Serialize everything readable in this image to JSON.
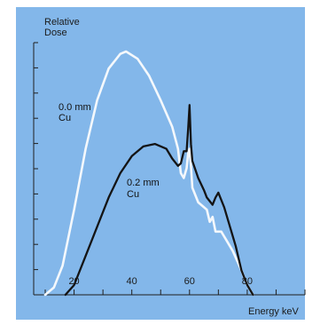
{
  "chart_data": {
    "type": "line",
    "title": "",
    "ylabel_line1": "Relative",
    "ylabel_line2": "Dose",
    "xlabel": "Energy keV",
    "xlim": [
      6,
      100
    ],
    "ylim": [
      0,
      1.0
    ],
    "x_ticks": [
      20,
      40,
      60,
      80
    ],
    "x_tick_labels": [
      "20",
      "40",
      "60",
      "80"
    ],
    "grid": false,
    "background_color": "#83b7ea",
    "series": [
      {
        "label_line1": "0.0 mm",
        "label_line2": "Cu",
        "color": "#f4f8fc",
        "points": [
          [
            10,
            0.0
          ],
          [
            13,
            0.03
          ],
          [
            16,
            0.12
          ],
          [
            20,
            0.35
          ],
          [
            24,
            0.6
          ],
          [
            28,
            0.8
          ],
          [
            32,
            0.93
          ],
          [
            36,
            0.99
          ],
          [
            38,
            1.0
          ],
          [
            42,
            0.97
          ],
          [
            46,
            0.9
          ],
          [
            50,
            0.8
          ],
          [
            54,
            0.69
          ],
          [
            56,
            0.6
          ],
          [
            57,
            0.5
          ],
          [
            58,
            0.48
          ],
          [
            59,
            0.52
          ],
          [
            59.5,
            0.58
          ],
          [
            60,
            0.6
          ],
          [
            60.5,
            0.53
          ],
          [
            61,
            0.44
          ],
          [
            63,
            0.38
          ],
          [
            65,
            0.36
          ],
          [
            66,
            0.35
          ],
          [
            67,
            0.3
          ],
          [
            68,
            0.32
          ],
          [
            69,
            0.26
          ],
          [
            71,
            0.26
          ],
          [
            73,
            0.22
          ],
          [
            75,
            0.18
          ],
          [
            78,
            0.1
          ],
          [
            80,
            0.04
          ],
          [
            82,
            0.0
          ]
        ]
      },
      {
        "label_line1": "0.2 mm",
        "label_line2": "Cu",
        "color": "#141414",
        "points": [
          [
            17,
            0.0
          ],
          [
            20,
            0.04
          ],
          [
            24,
            0.16
          ],
          [
            28,
            0.28
          ],
          [
            32,
            0.4
          ],
          [
            36,
            0.5
          ],
          [
            40,
            0.57
          ],
          [
            44,
            0.61
          ],
          [
            48,
            0.62
          ],
          [
            52,
            0.6
          ],
          [
            54,
            0.56
          ],
          [
            56,
            0.53
          ],
          [
            57,
            0.54
          ],
          [
            58,
            0.59
          ],
          [
            59,
            0.59
          ],
          [
            59.5,
            0.68
          ],
          [
            60,
            0.78
          ],
          [
            60.5,
            0.62
          ],
          [
            61,
            0.55
          ],
          [
            63,
            0.48
          ],
          [
            65,
            0.43
          ],
          [
            66,
            0.4
          ],
          [
            68,
            0.37
          ],
          [
            69,
            0.4
          ],
          [
            70,
            0.42
          ],
          [
            72,
            0.36
          ],
          [
            74,
            0.28
          ],
          [
            76,
            0.2
          ],
          [
            78,
            0.1
          ],
          [
            80,
            0.04
          ],
          [
            82,
            0.0
          ]
        ]
      }
    ]
  }
}
